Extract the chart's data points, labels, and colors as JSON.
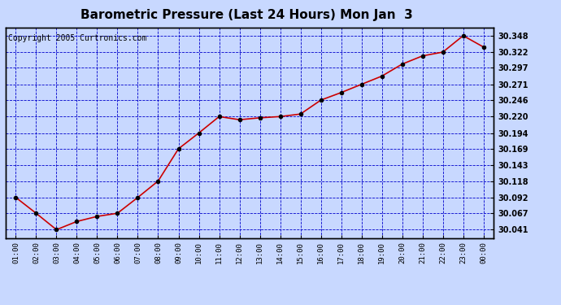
{
  "title": "Barometric Pressure (Last 24 Hours) Mon Jan  3",
  "copyright": "Copyright 2005 Curtronics.com",
  "x_labels": [
    "01:00",
    "02:00",
    "03:00",
    "04:00",
    "05:00",
    "06:00",
    "07:00",
    "08:00",
    "09:00",
    "10:00",
    "11:00",
    "12:00",
    "13:00",
    "14:00",
    "15:00",
    "16:00",
    "17:00",
    "18:00",
    "19:00",
    "20:00",
    "21:00",
    "22:00",
    "23:00",
    "00:00"
  ],
  "y_values": [
    30.092,
    30.067,
    30.041,
    30.054,
    30.062,
    30.067,
    30.092,
    30.118,
    30.169,
    30.194,
    30.22,
    30.215,
    30.218,
    30.22,
    30.224,
    30.246,
    30.258,
    30.271,
    30.284,
    30.303,
    30.316,
    30.322,
    30.348,
    30.33
  ],
  "y_ticks": [
    30.041,
    30.067,
    30.092,
    30.118,
    30.143,
    30.169,
    30.194,
    30.22,
    30.246,
    30.271,
    30.297,
    30.322,
    30.348
  ],
  "ylim": [
    30.028,
    30.361
  ],
  "line_color": "#CC0000",
  "marker_color": "#000000",
  "bg_color": "#C8D8FF",
  "plot_bg_color": "#C8D8FF",
  "grid_color": "#0000CC",
  "title_color": "#000000",
  "border_color": "#000000",
  "copyright_color": "#000000",
  "title_fontsize": 11,
  "copyright_fontsize": 7
}
